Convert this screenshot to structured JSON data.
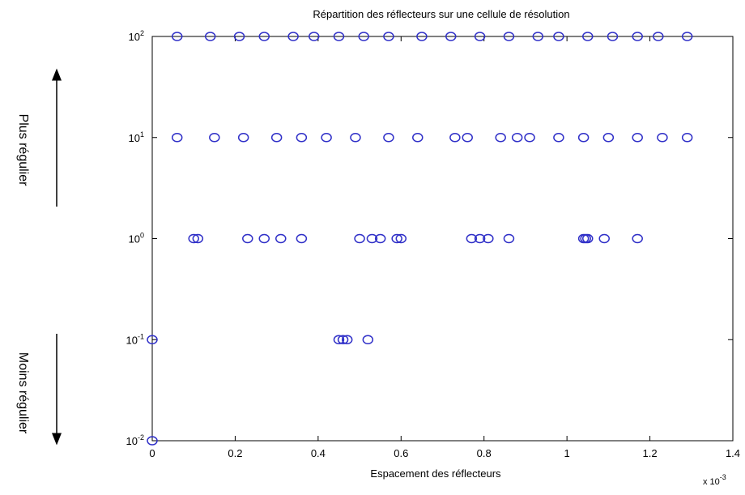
{
  "chart_data": {
    "type": "scatter",
    "title": "Répartition des réflecteurs sur une cellule de résolution",
    "x_label": "Espacement des réflecteurs",
    "x_multiplier": {
      "label": "x 10",
      "exponent": "-3"
    },
    "side_labels": [
      "Plus régulier",
      "Moins régulier"
    ],
    "log_y": true,
    "xlim": [
      0,
      1.4
    ],
    "xticks": [
      0,
      0.2,
      0.4,
      0.6,
      0.8,
      1,
      1.2,
      1.4
    ],
    "ylim": [
      0.01,
      100
    ],
    "yticks": [
      {
        "value": 0.01,
        "label": "10",
        "exponent": "-2"
      },
      {
        "value": 0.1,
        "label": "10",
        "exponent": "-1"
      },
      {
        "value": 1,
        "label": "10",
        "exponent": "0"
      },
      {
        "value": 10,
        "label": "10",
        "exponent": "1"
      },
      {
        "value": 100,
        "label": "10",
        "exponent": "2"
      }
    ],
    "series": [
      {
        "color": "#3030c8",
        "x": [
          0.06,
          0.14,
          0.21,
          0.27,
          0.34,
          0.39,
          0.45,
          0.51,
          0.57,
          0.65,
          0.72,
          0.79,
          0.86,
          0.93,
          0.98,
          1.05,
          1.11,
          1.17,
          1.22,
          1.29,
          0.06,
          0.15,
          0.22,
          0.3,
          0.36,
          0.42,
          0.49,
          0.57,
          0.64,
          0.73,
          0.76,
          0.84,
          0.88,
          0.91,
          0.98,
          1.04,
          1.1,
          1.17,
          1.23,
          1.29,
          0.1,
          0.11,
          0.23,
          0.27,
          0.31,
          0.36,
          0.5,
          0.53,
          0.55,
          0.59,
          0.6,
          0.77,
          0.79,
          0.81,
          0.86,
          1.04,
          1.045,
          1.05,
          1.09,
          1.17,
          0,
          0.45,
          0.46,
          0.47,
          0.52,
          0
        ],
        "values": [
          100,
          100,
          100,
          100,
          100,
          100,
          100,
          100,
          100,
          100,
          100,
          100,
          100,
          100,
          100,
          100,
          100,
          100,
          100,
          100,
          10,
          10,
          10,
          10,
          10,
          10,
          10,
          10,
          10,
          10,
          10,
          10,
          10,
          10,
          10,
          10,
          10,
          10,
          10,
          10,
          1,
          1,
          1,
          1,
          1,
          1,
          1,
          1,
          1,
          1,
          1,
          1,
          1,
          1,
          1,
          1,
          1,
          1,
          1,
          1,
          0.1,
          0.1,
          0.1,
          0.1,
          0.1,
          0.01
        ]
      }
    ]
  }
}
